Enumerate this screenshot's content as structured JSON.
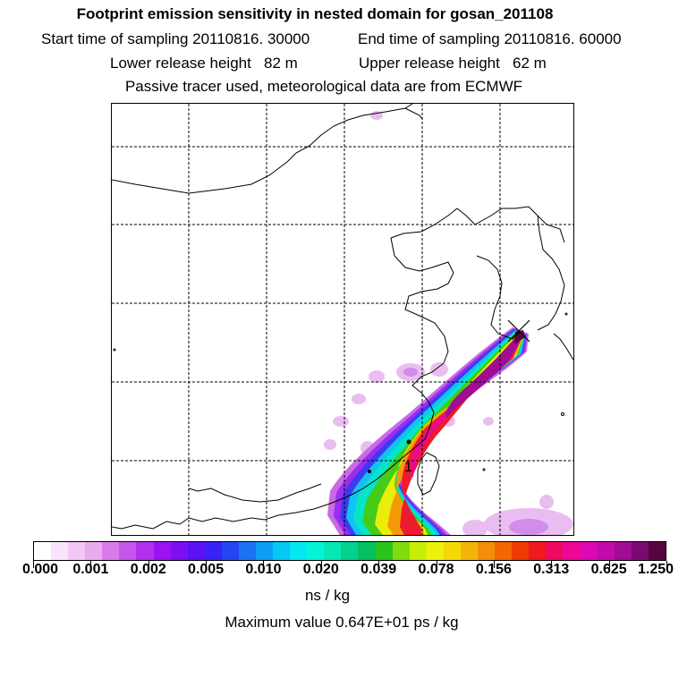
{
  "header": {
    "title": "Footprint emission sensitivity in nested domain for gosan_201108",
    "start_label": "Start time of sampling 20110816. 30000",
    "end_label": "End time of sampling 20110816. 60000",
    "lower_label": "Lower release height   82 m",
    "upper_label": "Upper release height   62 m",
    "tracer_note": "Passive tracer used, meteorological data are from ECMWF"
  },
  "map": {
    "marker_label": "1",
    "release_marker": "x-icon"
  },
  "colorbar": {
    "ticks": [
      "0.000",
      "0.001",
      "0.002",
      "0.005",
      "0.010",
      "0.020",
      "0.039",
      "0.078",
      "0.156",
      "0.313",
      "0.625",
      "1.250"
    ],
    "colors": [
      "#ffffff",
      "#fbe3fb",
      "#f3c6f3",
      "#eaaaee",
      "#d77ce8",
      "#c655ea",
      "#b32fee",
      "#9c12f2",
      "#7d0ef2",
      "#5b12f4",
      "#3a22f4",
      "#2346f4",
      "#1d72f4",
      "#0d9ef4",
      "#06c8f4",
      "#05e8f2",
      "#05f4d8",
      "#05e8b4",
      "#05d08c",
      "#05c060",
      "#29c41c",
      "#80dc0c",
      "#c8ee08",
      "#eef00a",
      "#f4d808",
      "#f4b408",
      "#f48e08",
      "#f26604",
      "#f03a04",
      "#ee1a20",
      "#ee0a60",
      "#ec0894",
      "#dc08b4",
      "#c20aa8",
      "#a00c92",
      "#7a0a72",
      "#56063e"
    ],
    "units": "ns / kg",
    "max_value": "Maximum value  0.647E+01 ps / kg"
  }
}
